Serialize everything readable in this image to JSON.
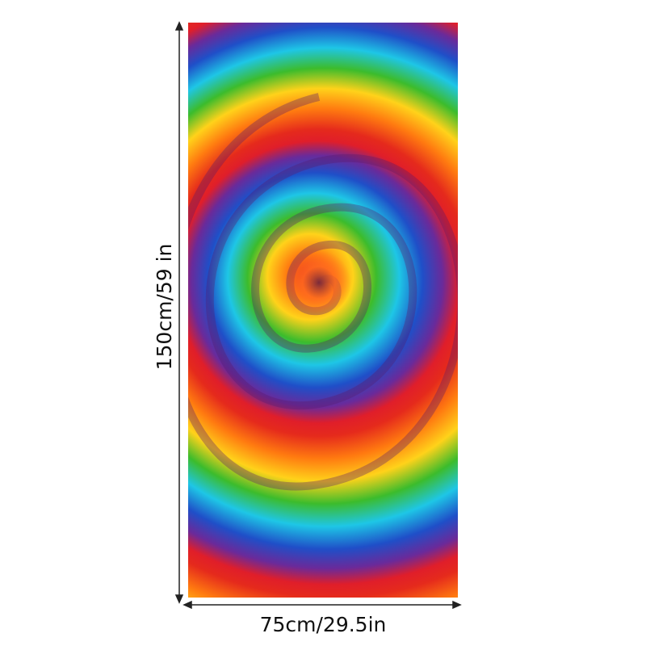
{
  "dimensions": {
    "height": "150cm/59 in",
    "width": "75cm/29.5in"
  }
}
